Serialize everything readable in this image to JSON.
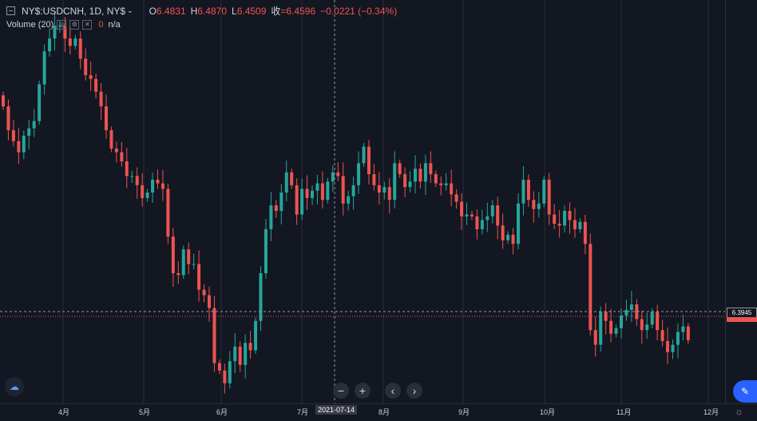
{
  "legend": {
    "symbol": "NY$:USDCNH, 1D, NY$",
    "open_label": "O",
    "open": "6.4831",
    "high_label": "H",
    "high": "6.4870",
    "low_label": "L",
    "low": "6.4509",
    "close_label": "收",
    "close": "=6.4596",
    "change": "−0.0221 (−0.34%)"
  },
  "volume": {
    "label": "Volume (20)",
    "value": "0",
    "na": "n/a"
  },
  "price_tag": "6.3945",
  "crosshair_date": "2021-07-14",
  "colors": {
    "up": "#26a69a",
    "down": "#ef5350",
    "background": "#131722",
    "grid": "#2a2e39"
  },
  "icons": {
    "zoom_out": "minus-icon",
    "zoom_in": "plus-icon",
    "scroll_left": "chevron-left-icon",
    "scroll_right": "chevron-right-icon",
    "settings": "gear-icon",
    "edit": "edit-icon",
    "logo": "logo-icon"
  },
  "chart_data": {
    "type": "candlestick",
    "title": "NY$:USDCNH, 1D, NY$",
    "x_ticks": [
      "4月",
      "5月",
      "6月",
      "7月",
      "8月",
      "9月",
      "10月",
      "11月",
      "12月"
    ],
    "ylim": [
      6.36,
      6.58
    ],
    "grid": true,
    "current_price": 6.3945,
    "crosshair_x": "2021-07-14",
    "close_series": [
      6.522,
      6.509,
      6.503,
      6.497,
      6.506,
      6.51,
      6.514,
      6.534,
      6.552,
      6.559,
      6.566,
      6.566,
      6.559,
      6.555,
      6.559,
      6.548,
      6.539,
      6.537,
      6.53,
      6.522,
      6.509,
      6.499,
      6.497,
      6.492,
      6.484,
      6.484,
      6.479,
      6.472,
      6.475,
      6.482,
      6.48,
      6.477,
      6.451,
      6.431,
      6.43,
      6.444,
      6.436,
      6.436,
      6.422,
      6.419,
      6.412,
      6.382,
      6.378,
      6.371,
      6.383,
      6.391,
      6.381,
      6.393,
      6.389,
      6.405,
      6.431,
      6.455,
      6.468,
      6.465,
      6.475,
      6.486,
      6.479,
      6.463,
      6.477,
      6.472,
      6.476,
      6.48,
      6.471,
      6.481,
      6.486,
      6.484,
      6.469,
      6.473,
      6.479,
      6.491,
      6.5,
      6.485,
      6.479,
      6.475,
      6.478,
      6.471,
      6.491,
      6.485,
      6.478,
      6.481,
      6.488,
      6.481,
      6.491,
      6.485,
      6.48,
      6.479,
      6.48,
      6.474,
      6.47,
      6.462,
      6.463,
      6.462,
      6.455,
      6.46,
      6.462,
      6.468,
      6.457,
      6.449,
      6.452,
      6.447,
      6.469,
      6.482,
      6.471,
      6.466,
      6.469,
      6.482,
      6.463,
      6.458,
      6.457,
      6.465,
      6.46,
      6.455,
      6.459,
      6.447,
      6.4,
      6.392,
      6.41,
      6.405,
      6.398,
      6.401,
      6.408,
      6.411,
      6.414,
      6.406,
      6.4,
      6.403,
      6.41,
      6.4,
      6.394,
      6.388,
      6.392,
      6.399,
      6.402,
      6.3945
    ]
  }
}
